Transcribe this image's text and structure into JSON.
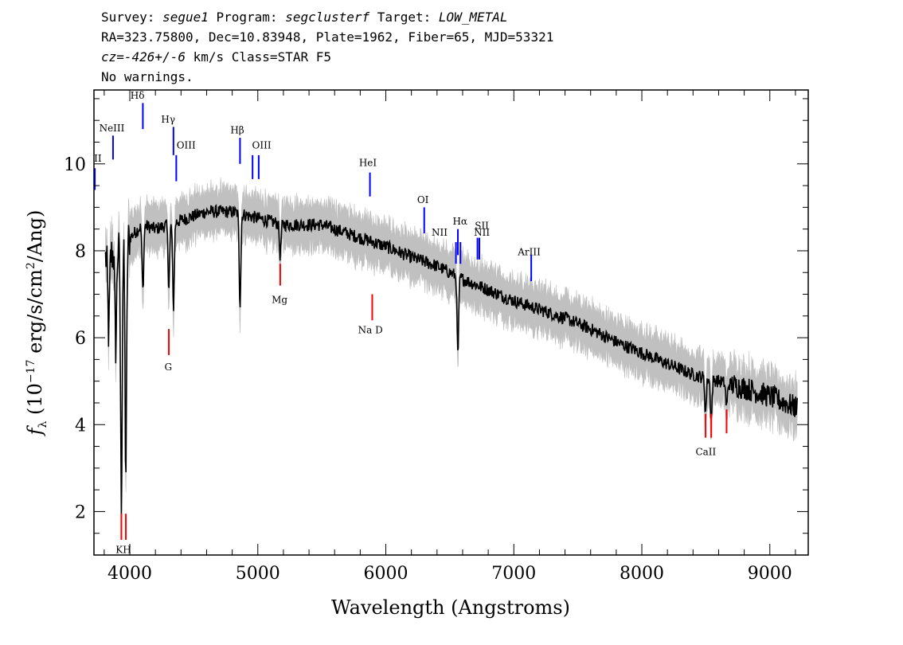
{
  "header": {
    "line1": {
      "p1": "Survey: ",
      "survey": "segue1",
      "p2": " Program: ",
      "program": "segclusterf",
      "p3": " Target: ",
      "target": "LOW_METAL"
    },
    "line2": "RA=323.75800, Dec=10.83948, Plate=1962, Fiber=65, MJD=53321",
    "line3": {
      "cz": "cz=-426+/-6",
      "rest": " km/s Class=STAR F5"
    },
    "line4": "No warnings."
  },
  "chart_data": {
    "type": "line",
    "xlabel": "Wavelength (Angstroms)",
    "ylabel": "fλ (10⁻¹⁷ erg/s/cm²/Ang)",
    "xlim": [
      3720,
      9300
    ],
    "ylim": [
      1.0,
      11.7
    ],
    "x_ticks": [
      4000,
      5000,
      6000,
      7000,
      8000,
      9000
    ],
    "y_ticks": [
      2,
      4,
      6,
      8,
      10
    ],
    "grid": false,
    "colors": {
      "flux": "#000000",
      "error": "#c0c0c0",
      "emission": "#0000ff",
      "absorption": "#ff0000"
    },
    "continuum": [
      {
        "x": 3800,
        "y": 7.8
      },
      {
        "x": 3900,
        "y": 8.0
      },
      {
        "x": 4000,
        "y": 8.3
      },
      {
        "x": 4100,
        "y": 8.6
      },
      {
        "x": 4200,
        "y": 8.5
      },
      {
        "x": 4400,
        "y": 8.7
      },
      {
        "x": 4600,
        "y": 8.9
      },
      {
        "x": 4800,
        "y": 8.9
      },
      {
        "x": 5000,
        "y": 8.75
      },
      {
        "x": 5200,
        "y": 8.6
      },
      {
        "x": 5500,
        "y": 8.6
      },
      {
        "x": 5800,
        "y": 8.3
      },
      {
        "x": 6000,
        "y": 8.1
      },
      {
        "x": 6200,
        "y": 7.85
      },
      {
        "x": 6400,
        "y": 7.65
      },
      {
        "x": 6600,
        "y": 7.35
      },
      {
        "x": 6800,
        "y": 7.1
      },
      {
        "x": 7000,
        "y": 6.85
      },
      {
        "x": 7200,
        "y": 6.65
      },
      {
        "x": 7400,
        "y": 6.45
      },
      {
        "x": 7600,
        "y": 6.2
      },
      {
        "x": 7800,
        "y": 5.9
      },
      {
        "x": 8000,
        "y": 5.65
      },
      {
        "x": 8200,
        "y": 5.4
      },
      {
        "x": 8400,
        "y": 5.15
      },
      {
        "x": 8600,
        "y": 5.0
      },
      {
        "x": 8800,
        "y": 4.85
      },
      {
        "x": 9000,
        "y": 4.65
      },
      {
        "x": 9200,
        "y": 4.4
      }
    ],
    "absorption_features": [
      {
        "x": 3934,
        "y": 2.2
      },
      {
        "x": 3969,
        "y": 2.9
      },
      {
        "x": 3890,
        "y": 5.8
      },
      {
        "x": 3835,
        "y": 6.1
      },
      {
        "x": 4102,
        "y": 7.1
      },
      {
        "x": 4305,
        "y": 7.2
      },
      {
        "x": 4341,
        "y": 6.7
      },
      {
        "x": 4861,
        "y": 6.8
      },
      {
        "x": 5175,
        "y": 7.9
      },
      {
        "x": 6563,
        "y": 5.6
      },
      {
        "x": 8498,
        "y": 4.3
      },
      {
        "x": 8542,
        "y": 4.1
      },
      {
        "x": 8662,
        "y": 4.4
      }
    ],
    "emission_lines": [
      {
        "name": "NeIII",
        "x": 3869,
        "tick_top": 10.65,
        "tick_bottom": 10.1
      },
      {
        "name": "Hδ",
        "x": 4102,
        "tick_top": 11.4,
        "tick_bottom": 10.8
      },
      {
        "name": "Hγ",
        "x": 4341,
        "tick_top": 10.85,
        "tick_bottom": 10.2
      },
      {
        "name": "OIII",
        "x": 4363,
        "tick_top": 10.2,
        "tick_bottom": 9.6
      },
      {
        "name": "Hβ",
        "x": 4861,
        "tick_top": 10.6,
        "tick_bottom": 10.0
      },
      {
        "name": "OIII",
        "x": 4959,
        "tick_top": 10.2,
        "tick_bottom": 9.65
      },
      {
        "name": "OIII",
        "x": 5007,
        "tick_top": 10.2,
        "tick_bottom": 9.65
      },
      {
        "name": "HeI",
        "x": 5876,
        "tick_top": 9.8,
        "tick_bottom": 9.25
      },
      {
        "name": "OI",
        "x": 6300,
        "tick_top": 9.0,
        "tick_bottom": 8.4
      },
      {
        "name": "NII",
        "x": 6548,
        "tick_top": 8.2,
        "tick_bottom": 7.7
      },
      {
        "name": "Hα",
        "x": 6563,
        "tick_top": 8.5,
        "tick_bottom": 7.9
      },
      {
        "name": "NII",
        "x": 6583,
        "tick_top": 8.2,
        "tick_bottom": 7.7
      },
      {
        "name": "SII",
        "x": 6716,
        "tick_top": 8.3,
        "tick_bottom": 7.8
      },
      {
        "name": "SII",
        "x": 6731,
        "tick_top": 8.3,
        "tick_bottom": 7.8
      },
      {
        "name": "ArIII",
        "x": 7136,
        "tick_top": 7.9,
        "tick_bottom": 7.3
      },
      {
        "name": "II",
        "x": 3727,
        "tick_top": 9.9,
        "tick_bottom": 9.4
      }
    ],
    "absorption_lines": [
      {
        "name": "K",
        "x": 3934,
        "tick_top": 1.95,
        "tick_bottom": 1.35
      },
      {
        "name": "H",
        "x": 3969,
        "tick_top": 1.95,
        "tick_bottom": 1.35
      },
      {
        "name": "G",
        "x": 4305,
        "tick_top": 6.2,
        "tick_bottom": 5.6
      },
      {
        "name": "Mg",
        "x": 5175,
        "tick_top": 7.7,
        "tick_bottom": 7.2
      },
      {
        "name": "Na D",
        "x": 5894,
        "tick_top": 7.0,
        "tick_bottom": 6.4
      },
      {
        "name": "CaII",
        "x": 8498,
        "tick_top": 4.25,
        "tick_bottom": 3.7
      },
      {
        "name": "CaII",
        "x": 8542,
        "tick_top": 4.25,
        "tick_bottom": 3.7
      },
      {
        "name": "CaII",
        "x": 8662,
        "tick_top": 4.35,
        "tick_bottom": 3.8
      }
    ],
    "visible_labels": {
      "emission": [
        {
          "text": "II",
          "x": 3750,
          "y": 10.05
        },
        {
          "text": "NeIII",
          "x": 3860,
          "y": 10.75
        },
        {
          "text": "Hδ",
          "x": 4060,
          "y": 11.5
        },
        {
          "text": "Hγ",
          "x": 4300,
          "y": 10.95
        },
        {
          "text": "OIII",
          "x": 4440,
          "y": 10.35
        },
        {
          "text": "Hβ",
          "x": 4840,
          "y": 10.7
        },
        {
          "text": "OIII",
          "x": 5030,
          "y": 10.35
        },
        {
          "text": "HeI",
          "x": 5860,
          "y": 9.95
        },
        {
          "text": "OI",
          "x": 6290,
          "y": 9.1
        },
        {
          "text": "NII",
          "x": 6420,
          "y": 8.35
        },
        {
          "text": "Hα",
          "x": 6580,
          "y": 8.6
        },
        {
          "text": "SII",
          "x": 6750,
          "y": 8.5
        },
        {
          "text": "NII",
          "x": 6750,
          "y": 8.35
        },
        {
          "text": "ArIII",
          "x": 7120,
          "y": 7.9
        }
      ],
      "absorption": [
        {
          "text": "KH",
          "x": 3950,
          "y": 1.05
        },
        {
          "text": "G",
          "x": 4300,
          "y": 5.25
        },
        {
          "text": "Mg",
          "x": 5170,
          "y": 6.8
        },
        {
          "text": "Na D",
          "x": 5880,
          "y": 6.1
        },
        {
          "text": "CaII",
          "x": 8500,
          "y": 3.3
        }
      ]
    }
  }
}
